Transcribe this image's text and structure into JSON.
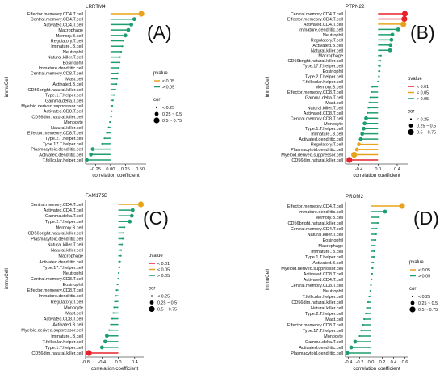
{
  "legend_labels": {
    "pvalue_title": "pvalue",
    "cor_title": "cor",
    "cor_items": [
      "< 0.25",
      "0.25 ~ 0.5",
      "0.5 ~ 0.75"
    ]
  },
  "colors": {
    "orange": "#E8A31C",
    "red": "#E8202A",
    "green": "#1E9E6E",
    "axis": "#000000"
  },
  "chart_data": [
    {
      "type": "lollipop",
      "panel_label": "(A)",
      "title": "LRRTM4",
      "xlabel": "correlation coefficient",
      "ylabel": "immuCell",
      "xlim": [
        -0.42,
        0.6
      ],
      "xticks": [
        -0.25,
        0,
        0.25,
        0.5
      ],
      "xtick_labels": [
        "-0.25",
        "0.00",
        "0.25",
        "0.50"
      ],
      "pvalue_legend": [
        {
          "label": "< 0.05",
          "color": "orange"
        },
        {
          "label": "> 0.05",
          "color": "green"
        }
      ],
      "categories": [
        "Effector.memeory.CD4.T.cell",
        "Central.memory.CD4.T.cell",
        "Activated.CD4.T.cell",
        "Macrophage",
        "Memory.B.cell",
        "Regulatory.T.cell",
        "Immature..B.cell",
        "Neutrophil",
        "Natural.killer.T.cell",
        "Eosinophil",
        "Immature.dendritic.cell",
        "Central.memory.CD8.T.cell",
        "Mast.cell",
        "Activated.B.cell",
        "CD56bright.natural.killer.cell",
        "Type.1.T.helper.cell",
        "Gamma.delta.T.cell",
        "Myeloid.derived.suppressor.cell",
        "Activated.CD8.T.cell",
        "CD56dim.natural.killer.cell",
        "Monocyte",
        "Natural.killer.cell",
        "Effector.memeory.CD8.T.cell",
        "Type.2.T.helper.cell",
        "Type.17.T.helper.cell",
        "Plasmacytoid.dendritic.cell",
        "Activated.dendritic.cell",
        "T.follicular.helper.cell"
      ],
      "values": [
        0.52,
        0.4,
        0.35,
        0.3,
        0.25,
        0.22,
        0.2,
        0.18,
        0.16,
        0.15,
        0.14,
        0.12,
        0.11,
        0.1,
        0.08,
        0.06,
        0.04,
        0.03,
        0.02,
        0.01,
        -0.01,
        -0.03,
        -0.06,
        -0.1,
        -0.14,
        -0.3,
        -0.33,
        -0.4
      ],
      "pvalue": [
        "orange",
        "green",
        "green",
        "green",
        "green",
        "green",
        "green",
        "green",
        "green",
        "green",
        "green",
        "green",
        "green",
        "green",
        "green",
        "green",
        "green",
        "green",
        "green",
        "green",
        "green",
        "green",
        "green",
        "green",
        "green",
        "green",
        "green",
        "green"
      ]
    },
    {
      "type": "lollipop",
      "panel_label": "(B)",
      "title": "PTPN22",
      "xlabel": "correlation coefficient",
      "ylabel": "immuCell",
      "xlim": [
        -0.68,
        0.62
      ],
      "xticks": [
        -0.4,
        0,
        0.4
      ],
      "xtick_labels": [
        "-0.4",
        "0.0",
        "0.4"
      ],
      "pvalue_legend": [
        {
          "label": "< 0.01",
          "color": "red"
        },
        {
          "label": "< 0.05",
          "color": "orange"
        },
        {
          "label": "> 0.05",
          "color": "green"
        }
      ],
      "categories": [
        "Central.memory.CD4.T.cell",
        "Effector.memeory.CD4.T.cell",
        "Activated.CD4.T.cell",
        "Immature.dendritic.cell",
        "Neutrophil",
        "Regulatory.T.cell",
        "Activated.B.cell",
        "Natural.killer.cell",
        "Macrophage",
        "CD56bright.natural.killer.cell",
        "Type.17.T.helper.cell",
        "Eosinophil",
        "Type.2.T.helper.cell",
        "T.follicular.helper.cell",
        "Memory.B.cell",
        "Effector.memeory.CD8.T.cell",
        "Gamma.delta.T.cell",
        "Mast.cell",
        "Natural.killer.T.cell",
        "Activated.CD8.T.cell",
        "Central.memory.CD8.T.cell",
        "Monocyte",
        "Type.1.T.helper.cell",
        "Immature..B.cell",
        "Activated.dendritic.cell",
        "Regulatory.T.cell",
        "Plasmacytoid.dendritic.cell",
        "Myeloid.derived.suppressor.cell",
        "CD56dim.natural.killer.cell"
      ],
      "values": [
        0.56,
        0.55,
        0.53,
        0.42,
        0.3,
        0.28,
        0.26,
        0.25,
        0.06,
        0.05,
        0.04,
        0.03,
        0.02,
        0.0,
        -0.12,
        -0.14,
        -0.16,
        -0.18,
        -0.2,
        -0.22,
        -0.25,
        -0.28,
        -0.3,
        -0.33,
        -0.36,
        -0.4,
        -0.44,
        -0.5,
        -0.6
      ],
      "pvalue": [
        "red",
        "red",
        "orange",
        "green",
        "green",
        "green",
        "green",
        "green",
        "green",
        "green",
        "green",
        "green",
        "green",
        "green",
        "green",
        "green",
        "green",
        "green",
        "green",
        "green",
        "green",
        "green",
        "green",
        "green",
        "green",
        "orange",
        "orange",
        "orange",
        "red"
      ]
    },
    {
      "type": "lollipop",
      "panel_label": "(C)",
      "title": "FAM175B",
      "xlabel": "correlation coefficient",
      "ylabel": "immuCell",
      "xlim": [
        -0.8,
        0.62
      ],
      "xticks": [
        -0.8,
        -0.4,
        0,
        0.4
      ],
      "xtick_labels": [
        "-0.8",
        "-0.4",
        "0.0",
        "0.4"
      ],
      "pvalue_legend": [
        {
          "label": "< 0.01",
          "color": "red"
        },
        {
          "label": "< 0.05",
          "color": "orange"
        },
        {
          "label": "> 0.05",
          "color": "green"
        }
      ],
      "categories": [
        "Central.memory.CD4.T.cell",
        "Activated.CD4.T.cell",
        "Gamma.delta.T.cell",
        "Type.2.T.helper.cell",
        "Memory.B.cell",
        "CD56bright.natural.killer.cell",
        "Plasmacytoid.dendritic.cell",
        "Natural.killer.T.cell",
        "Natural.killer.cell",
        "Macrophage",
        "Activated.dendritic.cell",
        "Type.17.T.helper.cell",
        "Neutrophil",
        "Central.memory.CD8.T.cell",
        "Eosinophil",
        "Effector.memeory.CD8.T.cell",
        "Immature.dendritic.cell",
        "Regulatory.T.cell",
        "Monocyte",
        "Mast.cell",
        "Activated.CD8.T.cell",
        "Activated.B.cell",
        "Myeloid.derived.suppressor.cell",
        "Immature..B.cell",
        "T.follicular.helper.cell",
        "Type.1.T.helper.cell",
        "CD56dim.natural.killer.cell"
      ],
      "values": [
        0.55,
        0.35,
        0.33,
        0.28,
        0.15,
        0.13,
        0.11,
        0.09,
        0.07,
        0.06,
        0.04,
        0.03,
        0.01,
        0.0,
        -0.02,
        -0.04,
        -0.06,
        -0.08,
        -0.1,
        -0.12,
        -0.15,
        -0.18,
        -0.22,
        -0.28,
        -0.32,
        -0.4,
        -0.72
      ],
      "pvalue": [
        "orange",
        "green",
        "green",
        "green",
        "green",
        "green",
        "green",
        "green",
        "green",
        "green",
        "green",
        "green",
        "green",
        "green",
        "green",
        "green",
        "green",
        "green",
        "green",
        "green",
        "green",
        "green",
        "green",
        "green",
        "green",
        "green",
        "red"
      ]
    },
    {
      "type": "lollipop",
      "panel_label": "(D)",
      "title": "PROM2",
      "xlabel": "correlation coefficient",
      "ylabel": "immuCell",
      "xlim": [
        -0.45,
        0.65
      ],
      "xticks": [
        -0.4,
        -0.2,
        0,
        0.2,
        0.4,
        0.6
      ],
      "xtick_labels": [
        "-0.4",
        "-0.2",
        "0.0",
        "0.2",
        "0.4",
        "0.6"
      ],
      "pvalue_legend": [
        {
          "label": "< 0.05",
          "color": "orange"
        },
        {
          "label": "> 0.05",
          "color": "green"
        }
      ],
      "categories": [
        "Effector.memeory.CD4.T.cell",
        "Immature.dendritic.cell",
        "Memory.B.cell",
        "CD56bright.natural.killer.cell",
        "Central.memory.CD4.T.cell",
        "Natural.killer.T.cell",
        "Eosinophil",
        "Macrophage",
        "Immature..B.cell",
        "Type.1.T.helper.cell",
        "Activated.B.cell",
        "Myeloid.derived.suppressor.cell",
        "Activated.CD8.T.cell",
        "Activated.CD4.T.cell",
        "Central.memory.CD8.T.cell",
        "Neutrophil",
        "T.follicular.helper.cell",
        "CD56dim.natural.killer.cell",
        "Natural.killer.cell",
        "Type.2.T.helper.cell",
        "Mast.cell",
        "Effector.memeory.CD8.T.cell",
        "Type.17.T.helper.cell",
        "Monocyte",
        "Gamma.delta.T.cell",
        "Activated.dendritic.cell",
        "Plasmacytoid.dendritic.cell"
      ],
      "values": [
        0.55,
        0.25,
        0.14,
        0.12,
        0.1,
        0.09,
        0.08,
        0.07,
        0.06,
        0.05,
        0.04,
        0.03,
        0.02,
        0.01,
        0.0,
        -0.01,
        -0.03,
        -0.05,
        -0.07,
        -0.09,
        -0.12,
        -0.14,
        -0.17,
        -0.2,
        -0.28,
        -0.35,
        -0.42
      ],
      "pvalue": [
        "orange",
        "green",
        "green",
        "green",
        "green",
        "green",
        "green",
        "green",
        "green",
        "green",
        "green",
        "green",
        "green",
        "green",
        "green",
        "green",
        "green",
        "green",
        "green",
        "green",
        "green",
        "green",
        "green",
        "green",
        "green",
        "green",
        "green"
      ]
    }
  ]
}
